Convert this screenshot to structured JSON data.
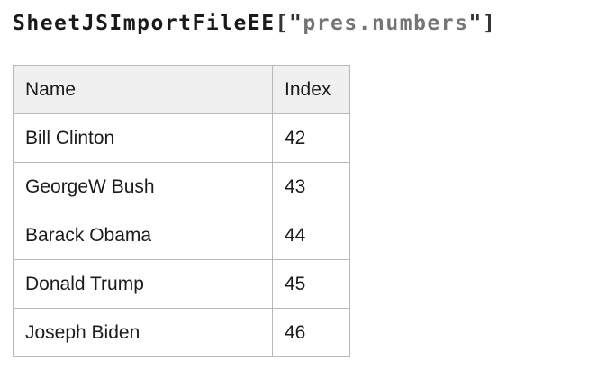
{
  "title": {
    "object_name": "SheetJSImportFileEE",
    "bracket_open": "[\"",
    "file_name": "pres.numbers",
    "bracket_close": "\"]"
  },
  "table": {
    "columns": [
      "Name",
      "Index"
    ],
    "rows": [
      [
        "Bill Clinton",
        "42"
      ],
      [
        "GeorgeW Bush",
        "43"
      ],
      [
        "Barack Obama",
        "44"
      ],
      [
        "Donald Trump",
        "45"
      ],
      [
        "Joseph Biden",
        "46"
      ]
    ]
  },
  "colors": {
    "page_background": "#ffffff",
    "title_text": "#1a1a1a",
    "title_punctuation": "#333333",
    "title_file_name": "#757575",
    "table_border": "#b8b8b8",
    "header_background": "#f0f0f0",
    "cell_text": "#1b1b1b"
  }
}
